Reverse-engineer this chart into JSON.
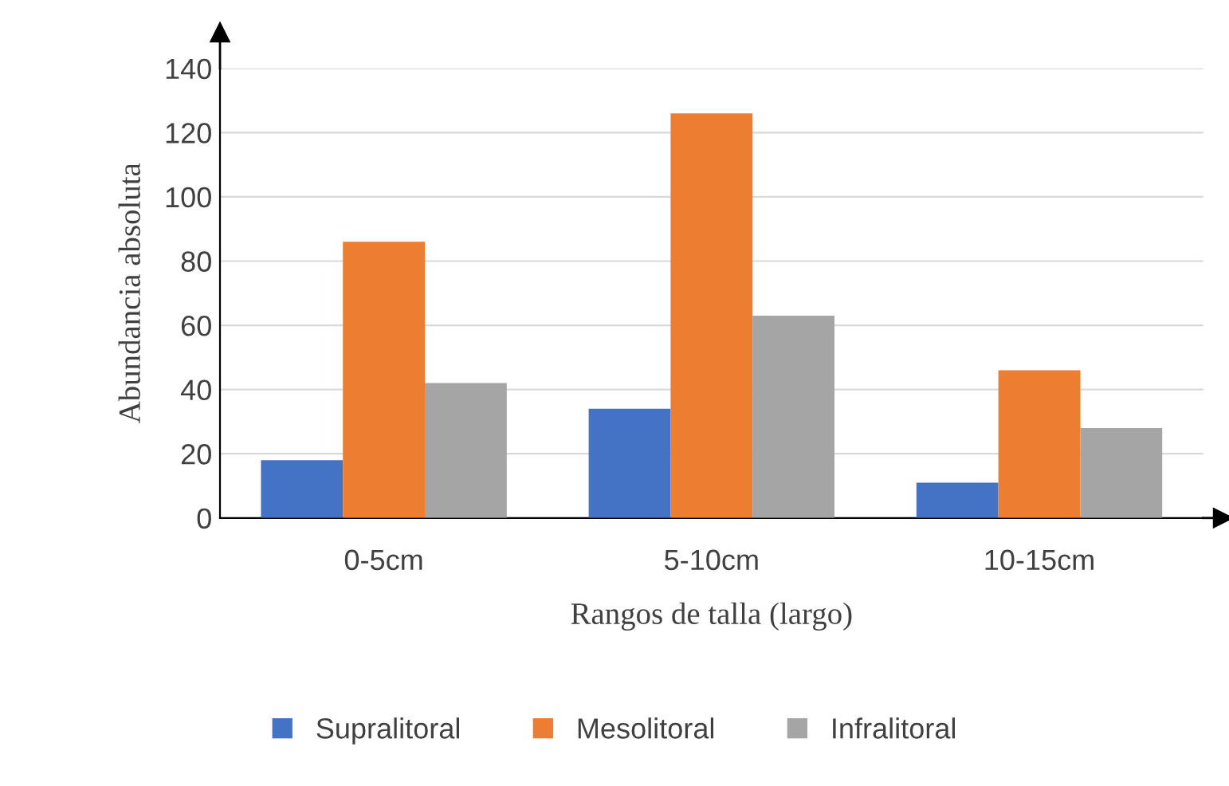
{
  "chart_data": {
    "type": "bar",
    "xlabel": "Rangos de talla (largo)",
    "ylabel": "Abundancia absoluta",
    "categories": [
      "0-5cm",
      "5-10cm",
      "10-15cm"
    ],
    "series": [
      {
        "name": "Supralitoral",
        "color": "#4472c4",
        "values": [
          18,
          34,
          11
        ]
      },
      {
        "name": "Mesolitoral",
        "color": "#ed7d31",
        "values": [
          86,
          126,
          46
        ]
      },
      {
        "name": "Infralitoral",
        "color": "#a5a5a5",
        "values": [
          42,
          63,
          28
        ]
      }
    ],
    "ylim": [
      0,
      140
    ],
    "yticks": [
      0,
      20,
      40,
      60,
      80,
      100,
      120,
      140
    ],
    "grid": "y",
    "legend": "bottom"
  }
}
